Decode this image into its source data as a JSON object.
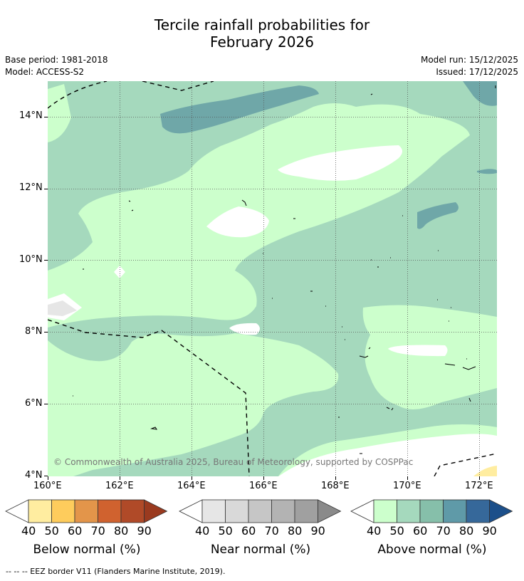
{
  "title_line1": "Tercile rainfall probabilities for",
  "title_line2": "February 2026",
  "base_period": "Base period: 1981-2018",
  "model": "Model: ACCESS-S2",
  "model_run": "Model run: 15/12/2025",
  "issued": "Issued: 17/12/2025",
  "copyright": "© Commonwealth of Australia 2025, Bureau of Meteorology, supported by COSPPac",
  "lat_ticks": [
    "14°N",
    "12°N",
    "10°N",
    "8°N",
    "6°N",
    "4°N"
  ],
  "lon_ticks": [
    "160°E",
    "162°E",
    "164°E",
    "166°E",
    "168°E",
    "170°E",
    "172°E"
  ],
  "colorbars": [
    {
      "title": "Below normal (%)",
      "labels": [
        "40",
        "50",
        "60",
        "70",
        "80",
        "90"
      ],
      "colors": [
        "#ffeda0",
        "#fecc5c",
        "#e3954a",
        "#d0622f",
        "#b04a28",
        "#9a3a1f"
      ]
    },
    {
      "title": "Near normal (%)",
      "labels": [
        "40",
        "50",
        "60",
        "70",
        "80",
        "90"
      ],
      "colors": [
        "#e6e6e6",
        "#d9d9d9",
        "#c6c6c6",
        "#b3b3b3",
        "#a0a0a0",
        "#8a8a8a"
      ]
    },
    {
      "title": "Above normal (%)",
      "labels": [
        "40",
        "50",
        "60",
        "70",
        "80",
        "90"
      ],
      "colors": [
        "#ccffcc",
        "#a5d9bd",
        "#86bfaa",
        "#5f9aa8",
        "#36689a",
        "#1c4f8a"
      ]
    }
  ],
  "footer": "--  --  -- EEZ border V11 (Flanders Marine Institute, 2019)."
}
